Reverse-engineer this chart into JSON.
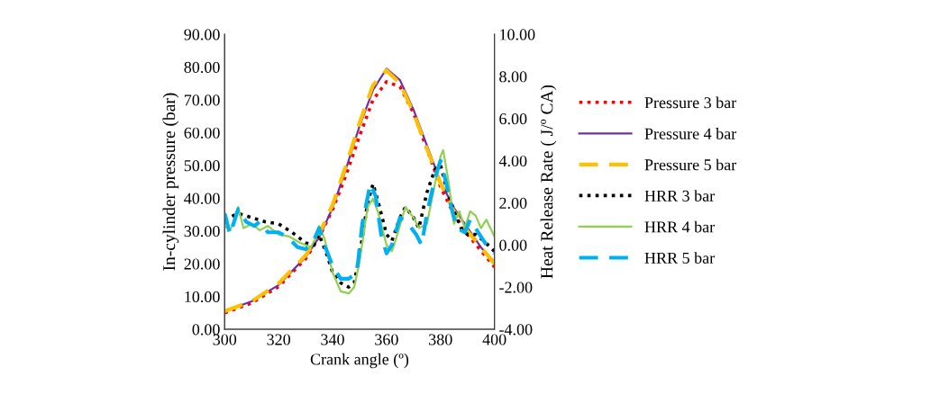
{
  "chart_data": {
    "type": "line",
    "xlabel": "Crank angle (º)",
    "ylabel": "In-cylinder pressure (bar)",
    "y2label": "Heat Release Rate ( J/º CA)",
    "xlim": [
      300,
      400
    ],
    "xticks": [
      300,
      320,
      340,
      360,
      380,
      400
    ],
    "ylim": [
      0,
      90
    ],
    "yticks": [
      {
        "value": 0,
        "label": "0.00"
      },
      {
        "value": 10,
        "label": "10.00"
      },
      {
        "value": 20,
        "label": "20.00"
      },
      {
        "value": 30,
        "label": "30.00"
      },
      {
        "value": 40,
        "label": "40.00"
      },
      {
        "value": 50,
        "label": "50.00"
      },
      {
        "value": 60,
        "label": "60.00"
      },
      {
        "value": 70,
        "label": "70.00"
      },
      {
        "value": 80,
        "label": "80.00"
      },
      {
        "value": 90,
        "label": "90.00"
      }
    ],
    "y2lim": [
      -4,
      10
    ],
    "y2ticks": [
      {
        "value": -4,
        "label": "-4.00"
      },
      {
        "value": -2,
        "label": "-2.00"
      },
      {
        "value": 0,
        "label": "0.00"
      },
      {
        "value": 2,
        "label": "2.00"
      },
      {
        "value": 4,
        "label": "4.00"
      },
      {
        "value": 6,
        "label": "6.00"
      },
      {
        "value": 8,
        "label": "8.00"
      },
      {
        "value": 10,
        "label": "10.00"
      }
    ],
    "grid": false,
    "legend": "right",
    "marker": "none",
    "series": [
      {
        "name": "Pressure 3 bar",
        "color": "#ff0000",
        "line_style": "dotted",
        "x": [
          300,
          310,
          320,
          330,
          335,
          340,
          345,
          350,
          355,
          360,
          365,
          370,
          375,
          380,
          385,
          390,
          395,
          400
        ],
        "values": [
          5,
          8,
          13,
          21.5,
          28,
          36.5,
          47,
          59,
          70,
          75.5,
          74,
          66,
          55,
          43.5,
          35,
          29,
          24,
          19
        ]
      },
      {
        "name": "Pressure 4 bar",
        "color": "#7030a0",
        "line_style": "solid",
        "x": [
          300,
          310,
          320,
          330,
          335,
          340,
          345,
          350,
          355,
          360,
          365,
          370,
          375,
          380,
          385,
          390,
          395,
          400
        ],
        "values": [
          5.5,
          8.5,
          13.5,
          22,
          28,
          37,
          49,
          62,
          73,
          79.5,
          76,
          67,
          56,
          45,
          37,
          31,
          25,
          20.5
        ]
      },
      {
        "name": "Pressure 5 bar",
        "color": "#ffc000",
        "line_style": "dashed",
        "x": [
          300,
          310,
          320,
          330,
          335,
          340,
          345,
          350,
          355,
          360,
          365,
          370,
          375,
          380,
          385,
          390,
          395,
          400
        ],
        "values": [
          5.5,
          8.5,
          14,
          22.5,
          29,
          38,
          50,
          63,
          74.5,
          79,
          75,
          66,
          55,
          44.5,
          36,
          30,
          25,
          20
        ]
      },
      {
        "name": "HRR 3 bar",
        "color": "#000000",
        "line_style": "dotted",
        "axis": "y2",
        "x": [
          300,
          305,
          310,
          315,
          320,
          325,
          330,
          333,
          335,
          338,
          340,
          343,
          346,
          348,
          350,
          353,
          355,
          357,
          360,
          362,
          365,
          367,
          370,
          372,
          375,
          378,
          380,
          382,
          385,
          388,
          390,
          393,
          396,
          400
        ],
        "values": [
          1.2,
          1.5,
          1.3,
          1.1,
          1.0,
          0.6,
          0.1,
          0.0,
          0.5,
          -0.5,
          -1.3,
          -1.8,
          -2.0,
          -1.8,
          -0.5,
          2.0,
          2.9,
          2.0,
          0.5,
          0.2,
          1.3,
          1.8,
          1.3,
          0.8,
          2.5,
          3.6,
          3.8,
          2.8,
          1.6,
          0.7,
          0.5,
          0.5,
          0.2,
          -0.3
        ]
      },
      {
        "name": "HRR 4 bar",
        "color": "#92d050",
        "line_style": "solid",
        "axis": "y2",
        "x": [
          300,
          302,
          304,
          305,
          307,
          310,
          313,
          316,
          320,
          324,
          328,
          332,
          334,
          335,
          337,
          340,
          343,
          346,
          348,
          350,
          353,
          355,
          357,
          360,
          362,
          364,
          367,
          370,
          372,
          375,
          377,
          380,
          381,
          383,
          385,
          387,
          389,
          391,
          393,
          395,
          397,
          400
        ],
        "values": [
          0.9,
          0.7,
          1.2,
          1.8,
          0.8,
          1.0,
          0.7,
          0.9,
          0.5,
          0.4,
          0.1,
          -0.1,
          0.4,
          0.9,
          0.3,
          -1.3,
          -2.2,
          -2.3,
          -2.0,
          -0.8,
          1.8,
          2.2,
          1.5,
          0.0,
          -0.3,
          0.5,
          1.8,
          1.3,
          0.8,
          1.0,
          2.3,
          4.2,
          4.5,
          3.0,
          1.0,
          1.6,
          0.8,
          1.6,
          1.4,
          0.8,
          1.2,
          0.4
        ]
      },
      {
        "name": "HRR 5 bar",
        "color": "#00b0f0",
        "line_style": "dashed",
        "axis": "y2",
        "x": [
          300,
          302,
          305,
          308,
          311,
          313,
          316,
          320,
          323,
          327,
          330,
          333,
          335,
          337,
          340,
          343,
          346,
          349,
          351,
          354,
          356,
          358,
          360,
          362,
          365,
          368,
          371,
          373,
          375,
          378,
          380,
          382,
          384,
          386,
          389,
          391,
          394,
          397,
          400
        ],
        "values": [
          1.5,
          0.5,
          1.7,
          1.1,
          0.9,
          1.1,
          0.6,
          0.6,
          0.4,
          -0.1,
          -0.2,
          0.2,
          0.8,
          0.0,
          -1.0,
          -1.6,
          -1.6,
          -1.3,
          1.0,
          2.9,
          2.3,
          0.5,
          -0.4,
          0.0,
          1.3,
          1.0,
          0.5,
          0.0,
          1.5,
          3.2,
          4.0,
          3.0,
          1.8,
          0.8,
          0.6,
          1.2,
          0.6,
          0.0,
          -0.4
        ]
      }
    ]
  }
}
